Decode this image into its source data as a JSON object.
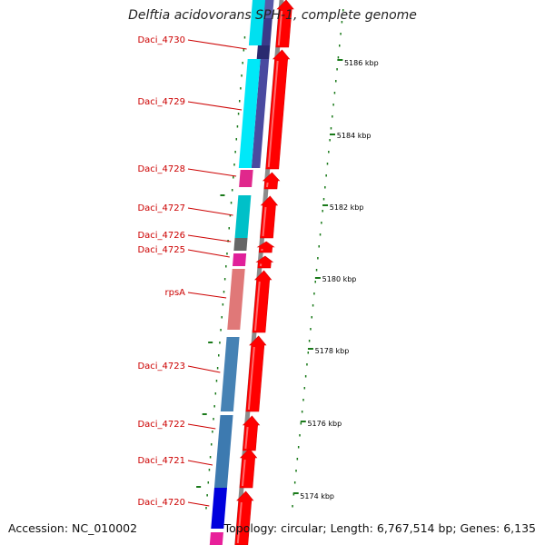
{
  "title": "Delftia acidovorans SPH-1, complete genome",
  "footer": {
    "accession": "Accession: NC_010002",
    "summary": "Topology: circular; Length: 6,767,514 bp; Genes: 6,135"
  },
  "colors": {
    "cds_arrow": "#ff0000",
    "backbone": "#8c8c8c",
    "label": "#cc0000",
    "tick": "#1a7a1a"
  },
  "gene_labels": [
    {
      "id": "daci-4730",
      "text": "Daci_4730"
    },
    {
      "id": "daci-4729",
      "text": "Daci_4729"
    },
    {
      "id": "daci-4728",
      "text": "Daci_4728"
    },
    {
      "id": "daci-4727",
      "text": "Daci_4727"
    },
    {
      "id": "daci-4726",
      "text": "Daci_4726"
    },
    {
      "id": "daci-4725",
      "text": "Daci_4725"
    },
    {
      "id": "rpsa",
      "text": "rpsA"
    },
    {
      "id": "daci-4723",
      "text": "Daci_4723"
    },
    {
      "id": "daci-4722",
      "text": "Daci_4722"
    },
    {
      "id": "daci-4721",
      "text": "Daci_4721"
    },
    {
      "id": "daci-4720",
      "text": "Daci_4720"
    }
  ],
  "kbp_labels": [
    "5186 kbp",
    "5184 kbp",
    "5182 kbp",
    "5180 kbp",
    "5178 kbp",
    "5176 kbp",
    "5174 kbp"
  ]
}
